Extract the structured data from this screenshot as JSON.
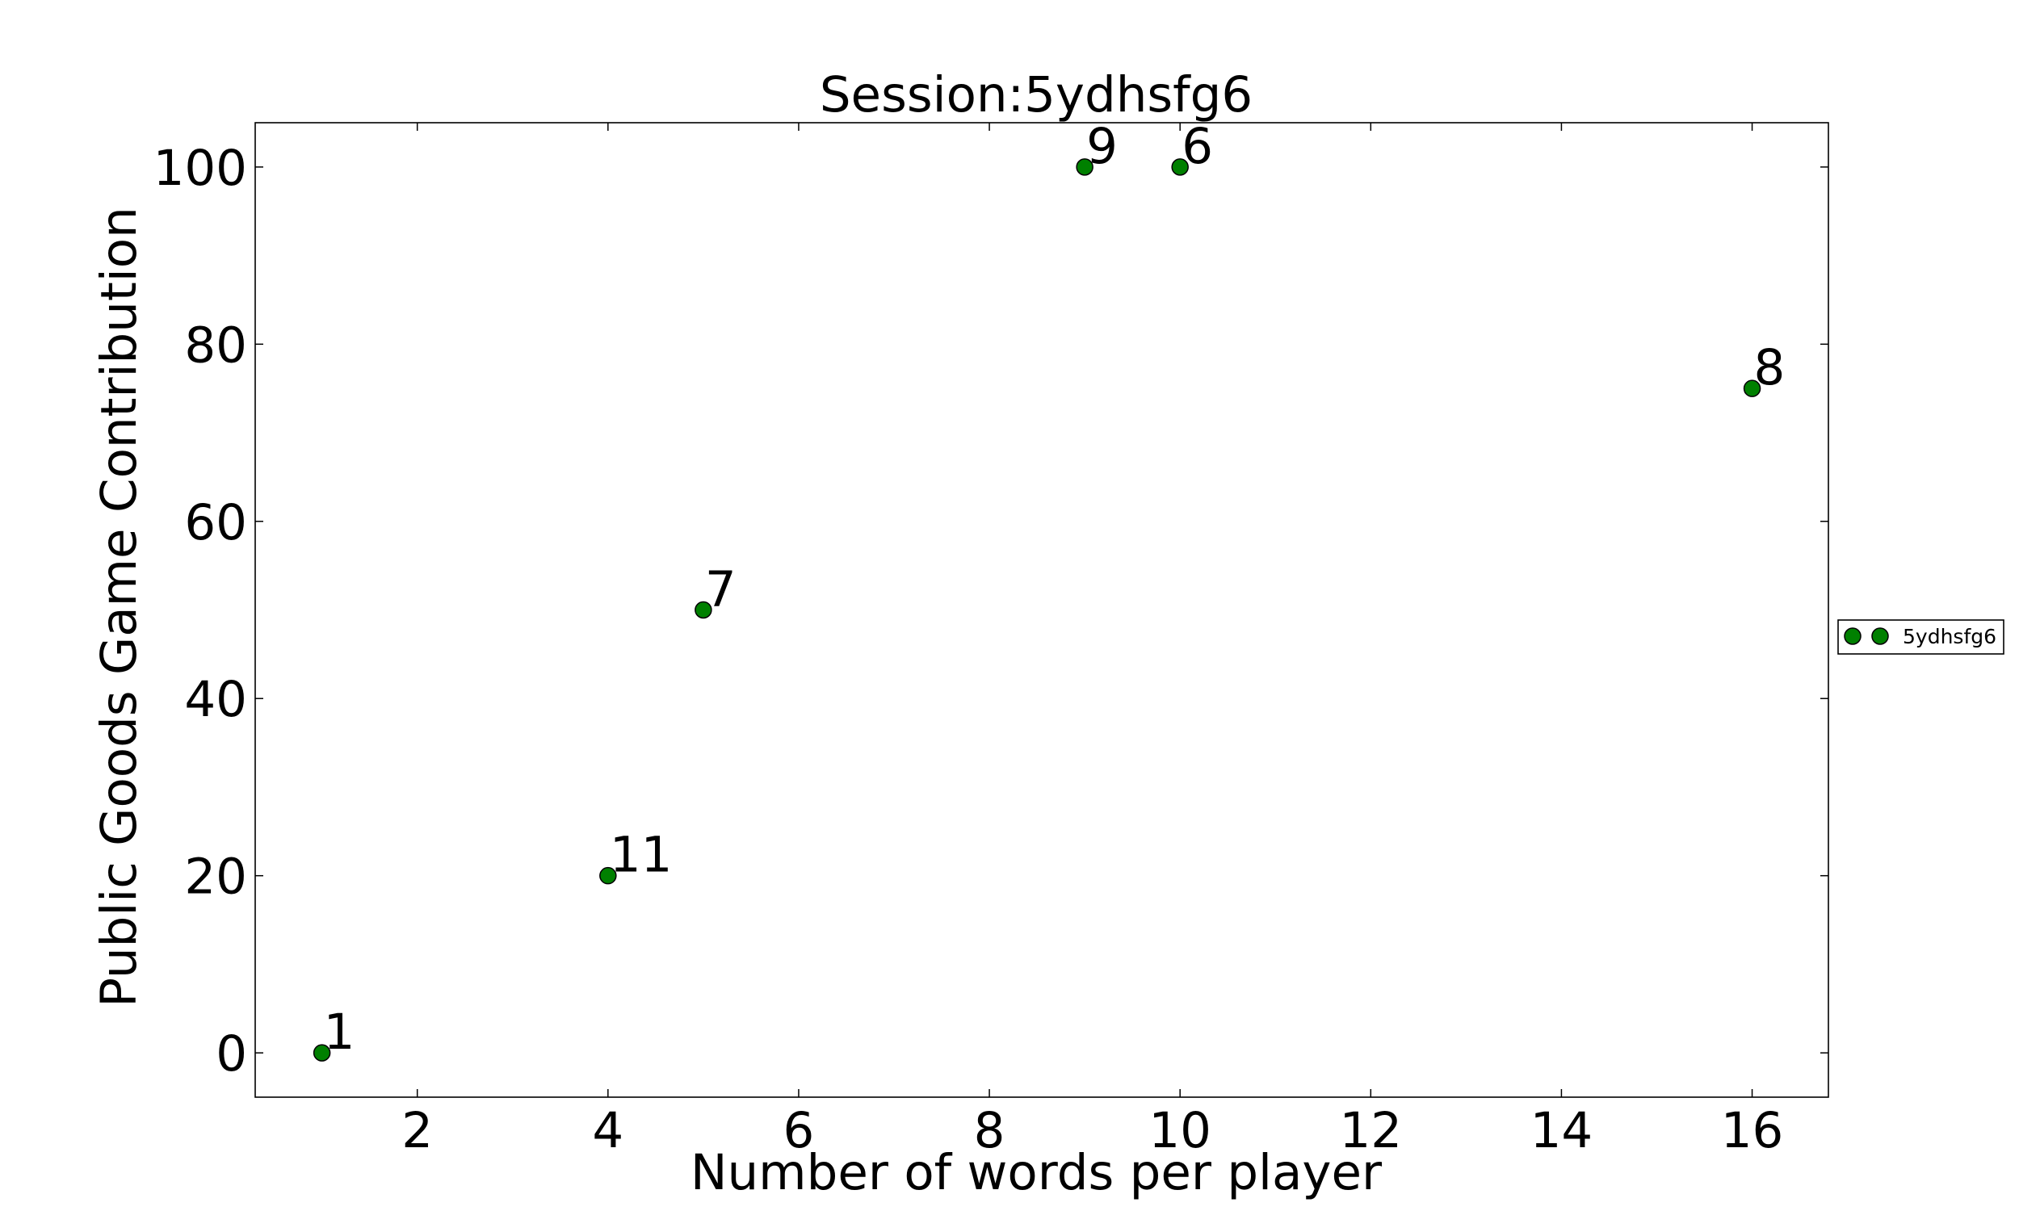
{
  "chart_data": {
    "type": "scatter",
    "title": "Session:5ydhsfg6",
    "xlabel": "Number of words per player",
    "ylabel": "Public Goods Game Contribution",
    "xlim": [
      0.3,
      16.8
    ],
    "ylim": [
      -5,
      105
    ],
    "x_ticks": [
      2,
      4,
      6,
      8,
      10,
      12,
      14,
      16
    ],
    "y_ticks": [
      0,
      20,
      40,
      60,
      80,
      100
    ],
    "grid": false,
    "legend_position": "right",
    "series": [
      {
        "name": "5ydhsfg6",
        "color": "#008000",
        "points": [
          {
            "x": 1,
            "y": 0,
            "label": "1"
          },
          {
            "x": 4,
            "y": 20,
            "label": "11"
          },
          {
            "x": 5,
            "y": 50,
            "label": "7"
          },
          {
            "x": 9,
            "y": 100,
            "label": "9"
          },
          {
            "x": 10,
            "y": 100,
            "label": "6"
          },
          {
            "x": 16,
            "y": 75,
            "label": "8"
          }
        ]
      }
    ]
  }
}
